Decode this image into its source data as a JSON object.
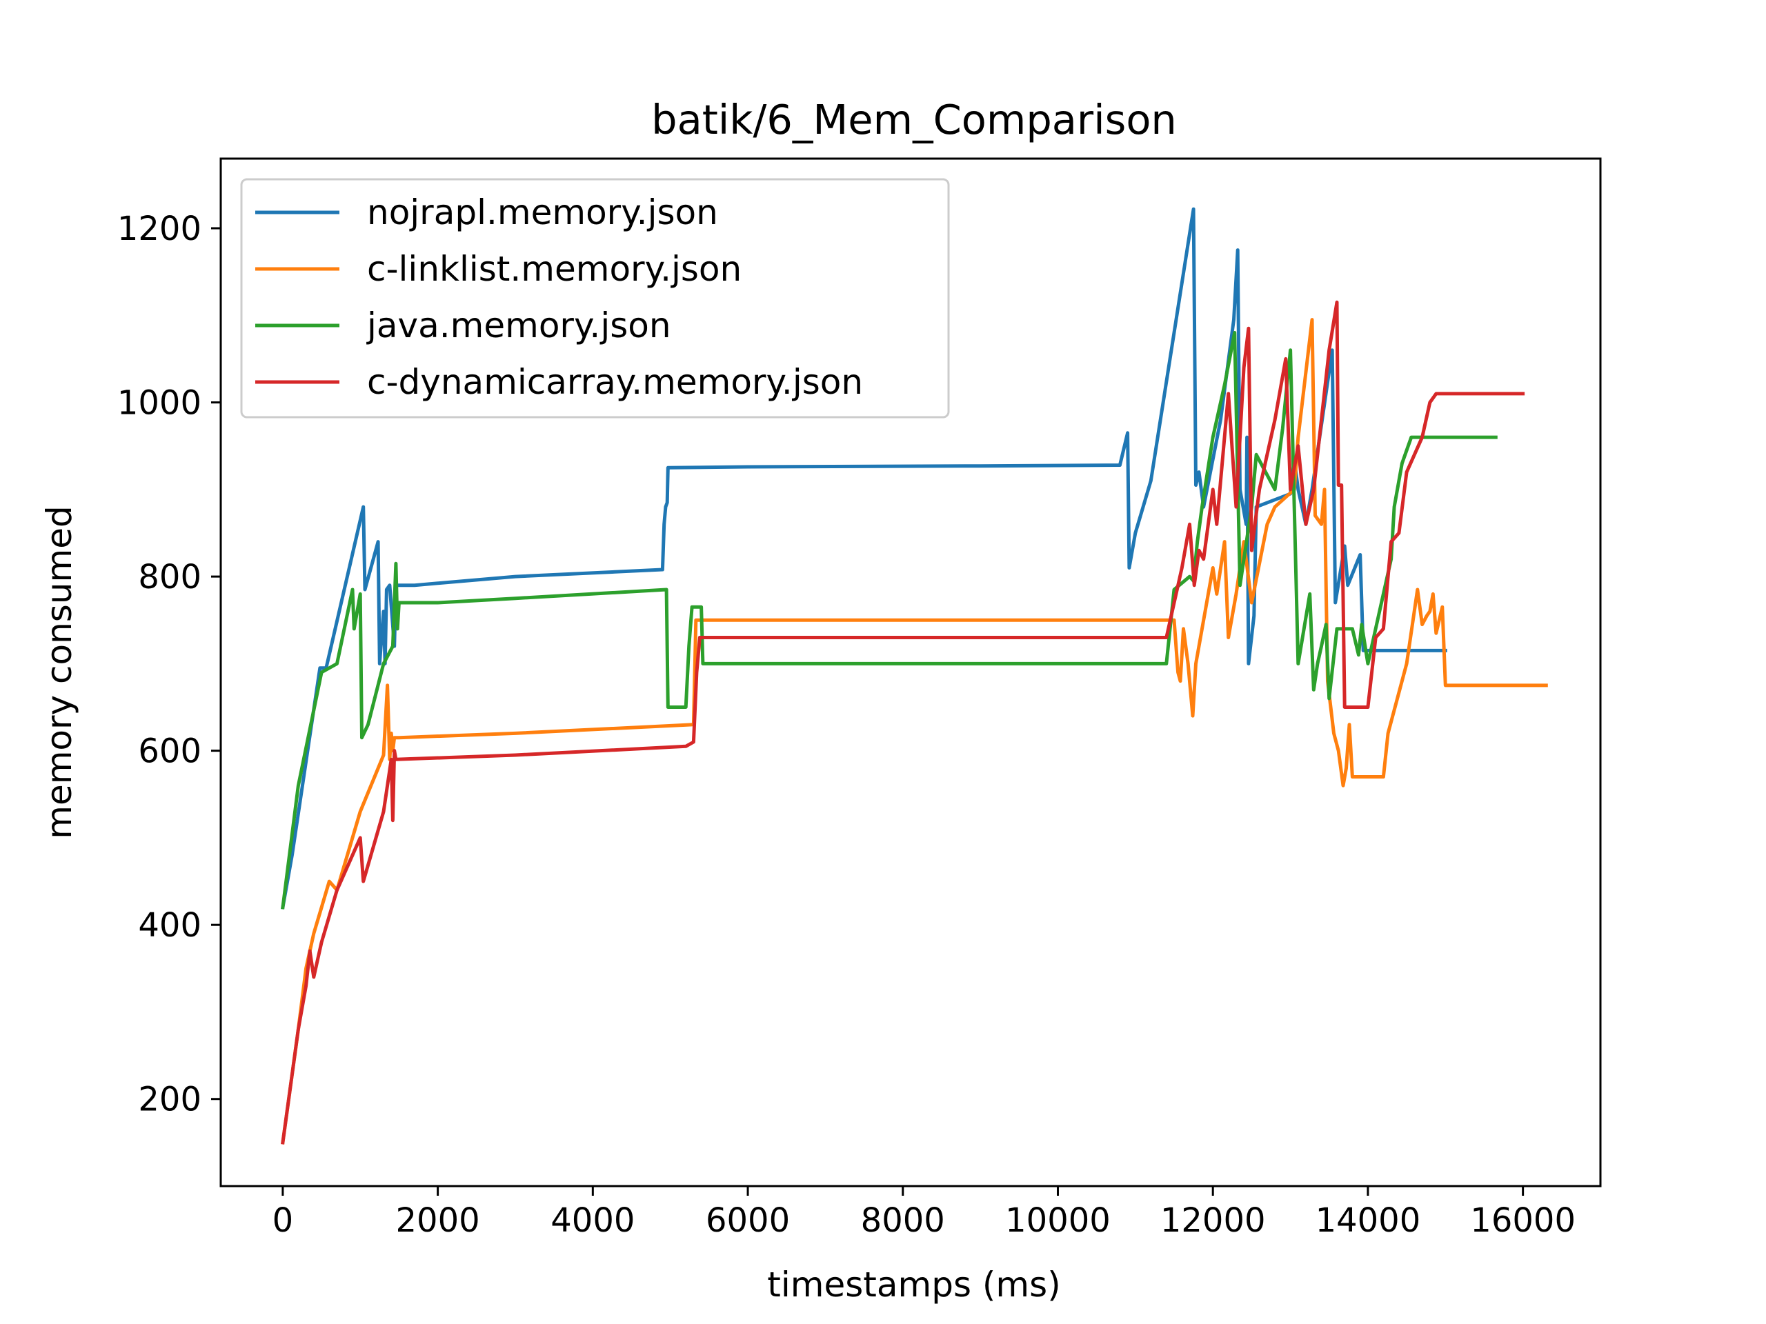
{
  "chart_data": {
    "type": "line",
    "title": "batik/6_Mem_Comparison",
    "xlabel": "timestamps (ms)",
    "ylabel": "memory consumed",
    "xlim": [
      -800,
      17000
    ],
    "ylim": [
      100,
      1280
    ],
    "xticks": [
      0,
      2000,
      4000,
      6000,
      8000,
      10000,
      12000,
      14000,
      16000
    ],
    "yticks": [
      200,
      400,
      600,
      800,
      1000,
      1200
    ],
    "grid": false,
    "legend_position": "top-left",
    "series": [
      {
        "name": "nojrapl.memory.json",
        "color": "#1f77b4",
        "points": [
          [
            0,
            420
          ],
          [
            120,
            480
          ],
          [
            480,
            695
          ],
          [
            560,
            695
          ],
          [
            1040,
            880
          ],
          [
            1060,
            785
          ],
          [
            1230,
            840
          ],
          [
            1250,
            700
          ],
          [
            1300,
            760
          ],
          [
            1320,
            700
          ],
          [
            1340,
            785
          ],
          [
            1380,
            790
          ],
          [
            1440,
            720
          ],
          [
            1460,
            790
          ],
          [
            1700,
            790
          ],
          [
            3000,
            800
          ],
          [
            4900,
            808
          ],
          [
            4920,
            860
          ],
          [
            4940,
            880
          ],
          [
            4960,
            885
          ],
          [
            4970,
            925
          ],
          [
            6000,
            926
          ],
          [
            9000,
            927
          ],
          [
            10800,
            928
          ],
          [
            10900,
            965
          ],
          [
            10920,
            810
          ],
          [
            11000,
            850
          ],
          [
            11200,
            910
          ],
          [
            11750,
            1222
          ],
          [
            11780,
            905
          ],
          [
            11820,
            920
          ],
          [
            11880,
            880
          ],
          [
            12100,
            980
          ],
          [
            12270,
            1095
          ],
          [
            12320,
            1175
          ],
          [
            12350,
            900
          ],
          [
            12430,
            860
          ],
          [
            12440,
            960
          ],
          [
            12460,
            700
          ],
          [
            12530,
            755
          ],
          [
            12560,
            880
          ],
          [
            13000,
            895
          ],
          [
            13050,
            935
          ],
          [
            13100,
            900
          ],
          [
            13200,
            860
          ],
          [
            13280,
            900
          ],
          [
            13540,
            1060
          ],
          [
            13580,
            770
          ],
          [
            13700,
            835
          ],
          [
            13740,
            790
          ],
          [
            13900,
            825
          ],
          [
            13940,
            715
          ],
          [
            15000,
            715
          ]
        ]
      },
      {
        "name": "c-linklist.memory.json",
        "color": "#ff7f0e",
        "points": [
          [
            0,
            150
          ],
          [
            200,
            280
          ],
          [
            300,
            350
          ],
          [
            400,
            390
          ],
          [
            500,
            420
          ],
          [
            600,
            450
          ],
          [
            700,
            440
          ],
          [
            1000,
            530
          ],
          [
            1300,
            595
          ],
          [
            1350,
            675
          ],
          [
            1380,
            590
          ],
          [
            1400,
            620
          ],
          [
            1420,
            600
          ],
          [
            1440,
            615
          ],
          [
            1500,
            615
          ],
          [
            3000,
            620
          ],
          [
            5300,
            630
          ],
          [
            5330,
            750
          ],
          [
            11500,
            750
          ],
          [
            11550,
            690
          ],
          [
            11580,
            680
          ],
          [
            11620,
            740
          ],
          [
            11680,
            700
          ],
          [
            11740,
            640
          ],
          [
            11780,
            700
          ],
          [
            12000,
            810
          ],
          [
            12050,
            780
          ],
          [
            12150,
            840
          ],
          [
            12200,
            730
          ],
          [
            12300,
            780
          ],
          [
            12400,
            840
          ],
          [
            12500,
            770
          ],
          [
            12700,
            860
          ],
          [
            12800,
            880
          ],
          [
            13050,
            900
          ],
          [
            13100,
            960
          ],
          [
            13280,
            1095
          ],
          [
            13320,
            870
          ],
          [
            13400,
            860
          ],
          [
            13440,
            900
          ],
          [
            13480,
            680
          ],
          [
            13560,
            620
          ],
          [
            13620,
            600
          ],
          [
            13680,
            560
          ],
          [
            13720,
            580
          ],
          [
            13760,
            630
          ],
          [
            13800,
            570
          ],
          [
            14200,
            570
          ],
          [
            14260,
            620
          ],
          [
            14500,
            700
          ],
          [
            14640,
            785
          ],
          [
            14700,
            745
          ],
          [
            14760,
            755
          ],
          [
            14800,
            760
          ],
          [
            14840,
            780
          ],
          [
            14880,
            735
          ],
          [
            14960,
            765
          ],
          [
            15000,
            675
          ],
          [
            16300,
            675
          ]
        ]
      },
      {
        "name": "java.memory.json",
        "color": "#2ca02c",
        "points": [
          [
            0,
            420
          ],
          [
            200,
            560
          ],
          [
            500,
            690
          ],
          [
            700,
            700
          ],
          [
            900,
            785
          ],
          [
            920,
            740
          ],
          [
            1000,
            780
          ],
          [
            1020,
            615
          ],
          [
            1100,
            630
          ],
          [
            1300,
            700
          ],
          [
            1420,
            720
          ],
          [
            1460,
            815
          ],
          [
            1480,
            740
          ],
          [
            1500,
            770
          ],
          [
            2000,
            770
          ],
          [
            3000,
            775
          ],
          [
            4950,
            785
          ],
          [
            4970,
            650
          ],
          [
            5200,
            650
          ],
          [
            5240,
            720
          ],
          [
            5280,
            765
          ],
          [
            5400,
            765
          ],
          [
            5420,
            700
          ],
          [
            6000,
            700
          ],
          [
            9000,
            700
          ],
          [
            11400,
            700
          ],
          [
            11500,
            785
          ],
          [
            11700,
            800
          ],
          [
            11750,
            795
          ],
          [
            11800,
            840
          ],
          [
            11860,
            880
          ],
          [
            12000,
            960
          ],
          [
            12150,
            1020
          ],
          [
            12280,
            1080
          ],
          [
            12350,
            790
          ],
          [
            12500,
            880
          ],
          [
            12560,
            940
          ],
          [
            12800,
            900
          ],
          [
            12900,
            970
          ],
          [
            13000,
            1060
          ],
          [
            13100,
            700
          ],
          [
            13250,
            780
          ],
          [
            13300,
            670
          ],
          [
            13350,
            700
          ],
          [
            13400,
            720
          ],
          [
            13460,
            745
          ],
          [
            13500,
            660
          ],
          [
            13600,
            740
          ],
          [
            13800,
            740
          ],
          [
            13880,
            710
          ],
          [
            13920,
            745
          ],
          [
            14000,
            700
          ],
          [
            14300,
            820
          ],
          [
            14340,
            880
          ],
          [
            14440,
            930
          ],
          [
            14560,
            960
          ],
          [
            15650,
            960
          ]
        ]
      },
      {
        "name": "c-dynamicarray.memory.json",
        "color": "#d62728",
        "points": [
          [
            0,
            150
          ],
          [
            200,
            280
          ],
          [
            300,
            330
          ],
          [
            350,
            370
          ],
          [
            400,
            340
          ],
          [
            500,
            380
          ],
          [
            700,
            440
          ],
          [
            1000,
            500
          ],
          [
            1040,
            450
          ],
          [
            1300,
            530
          ],
          [
            1400,
            590
          ],
          [
            1420,
            520
          ],
          [
            1440,
            600
          ],
          [
            1460,
            590
          ],
          [
            3000,
            595
          ],
          [
            5200,
            605
          ],
          [
            5300,
            610
          ],
          [
            5340,
            690
          ],
          [
            5380,
            730
          ],
          [
            11400,
            730
          ],
          [
            11600,
            810
          ],
          [
            11700,
            860
          ],
          [
            11760,
            790
          ],
          [
            11820,
            830
          ],
          [
            11880,
            820
          ],
          [
            12000,
            900
          ],
          [
            12050,
            860
          ],
          [
            12200,
            1010
          ],
          [
            12300,
            880
          ],
          [
            12400,
            1040
          ],
          [
            12460,
            1085
          ],
          [
            12500,
            830
          ],
          [
            12600,
            900
          ],
          [
            12800,
            980
          ],
          [
            12940,
            1050
          ],
          [
            13000,
            900
          ],
          [
            13100,
            950
          ],
          [
            13200,
            860
          ],
          [
            13300,
            900
          ],
          [
            13500,
            1060
          ],
          [
            13600,
            1115
          ],
          [
            13620,
            905
          ],
          [
            13660,
            905
          ],
          [
            13700,
            650
          ],
          [
            14000,
            650
          ],
          [
            14100,
            730
          ],
          [
            14200,
            740
          ],
          [
            14300,
            840
          ],
          [
            14400,
            850
          ],
          [
            14500,
            920
          ],
          [
            14700,
            960
          ],
          [
            14800,
            1000
          ],
          [
            14880,
            1010
          ],
          [
            16000,
            1010
          ]
        ]
      }
    ]
  }
}
